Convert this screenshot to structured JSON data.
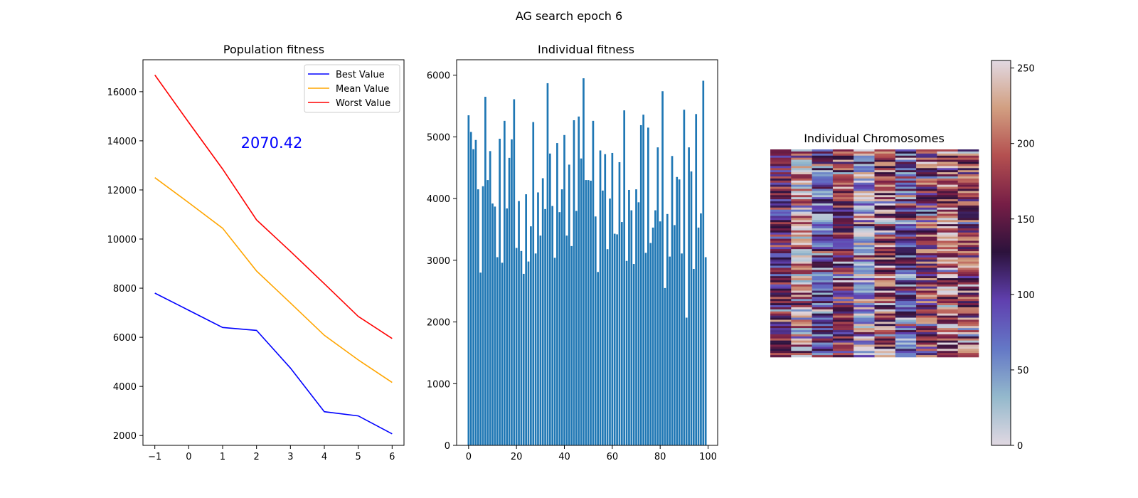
{
  "figure_title": "AG search epoch 6",
  "chart_data": [
    {
      "type": "line",
      "title": "Population fitness",
      "xlabel": "",
      "ylabel": "",
      "x": [
        -1,
        0,
        1,
        2,
        3,
        4,
        5,
        6
      ],
      "xlim": [
        -1.35,
        6.35
      ],
      "ylim": [
        1600,
        17300
      ],
      "xticks": [
        -1,
        0,
        1,
        2,
        3,
        4,
        5,
        6
      ],
      "yticks": [
        2000,
        4000,
        6000,
        8000,
        10000,
        12000,
        14000,
        16000
      ],
      "annotation": "2070.42",
      "annotation_color": "#0000ff",
      "legend_position": "top-right",
      "series": [
        {
          "name": "Best Value",
          "color": "#0000ff",
          "values": [
            7800,
            7100,
            6400,
            6280,
            4750,
            2970,
            2800,
            2070
          ]
        },
        {
          "name": "Mean Value",
          "color": "#ffa500",
          "values": [
            12500,
            11480,
            10440,
            8700,
            7400,
            6080,
            5080,
            4160
          ]
        },
        {
          "name": "Worst Value",
          "color": "#ff0000",
          "values": [
            16680,
            14750,
            12850,
            10780,
            9500,
            8180,
            6850,
            5950
          ]
        }
      ]
    },
    {
      "type": "bar",
      "title": "Individual fitness",
      "xlabel": "",
      "ylabel": "",
      "xlim": [
        -5,
        104
      ],
      "ylim": [
        0,
        6250
      ],
      "xticks": [
        0,
        20,
        40,
        60,
        80,
        100
      ],
      "yticks": [
        0,
        1000,
        2000,
        3000,
        4000,
        5000,
        6000
      ],
      "bar_color": "#1f77b4",
      "x": [
        0,
        1,
        2,
        3,
        4,
        5,
        6,
        7,
        8,
        9,
        10,
        11,
        12,
        13,
        14,
        15,
        16,
        17,
        18,
        19,
        20,
        21,
        22,
        23,
        24,
        25,
        26,
        27,
        28,
        29,
        30,
        31,
        32,
        33,
        34,
        35,
        36,
        37,
        38,
        39,
        40,
        41,
        42,
        43,
        44,
        45,
        46,
        47,
        48,
        49,
        50,
        51,
        52,
        53,
        54,
        55,
        56,
        57,
        58,
        59,
        60,
        61,
        62,
        63,
        64,
        65,
        66,
        67,
        68,
        69,
        70,
        71,
        72,
        73,
        74,
        75,
        76,
        77,
        78,
        79,
        80,
        81,
        82,
        83,
        84,
        85,
        86,
        87,
        88,
        89,
        90,
        91,
        92,
        93,
        94,
        95,
        96,
        97,
        98,
        99
      ],
      "values": [
        5350,
        5080,
        4800,
        4950,
        4150,
        2800,
        4200,
        5650,
        4300,
        4770,
        3920,
        3870,
        3050,
        4970,
        2960,
        5260,
        3840,
        4660,
        4960,
        5610,
        3200,
        3960,
        3150,
        2780,
        4070,
        2980,
        3550,
        5240,
        3110,
        4100,
        3400,
        4330,
        3830,
        5870,
        4730,
        3880,
        3040,
        4900,
        3780,
        4150,
        5030,
        3400,
        4550,
        3230,
        5270,
        3800,
        5330,
        4650,
        5950,
        4300,
        4300,
        4290,
        5260,
        3710,
        2810,
        4780,
        4130,
        4720,
        3180,
        4000,
        4740,
        3430,
        3420,
        4590,
        3620,
        5430,
        2990,
        4140,
        3810,
        2940,
        4150,
        3940,
        5190,
        5360,
        3120,
        5150,
        3280,
        3530,
        3810,
        4830,
        3630,
        5740,
        2550,
        3750,
        3060,
        4690,
        3570,
        4350,
        4310,
        3110,
        5440,
        2070,
        4830,
        4440,
        2860,
        5370,
        3530,
        3760,
        5910,
        3050
      ]
    },
    {
      "type": "heatmap",
      "title": "Individual Chromosomes",
      "colormap": "twilight",
      "colorbar_range": [
        0,
        255
      ],
      "colorbar_ticks": [
        0,
        50,
        100,
        150,
        200,
        250
      ],
      "n_rows": 100,
      "n_cols": 10,
      "column_base_values": [
        135,
        225,
        85,
        150,
        35,
        190,
        80,
        160,
        200,
        175
      ]
    }
  ]
}
